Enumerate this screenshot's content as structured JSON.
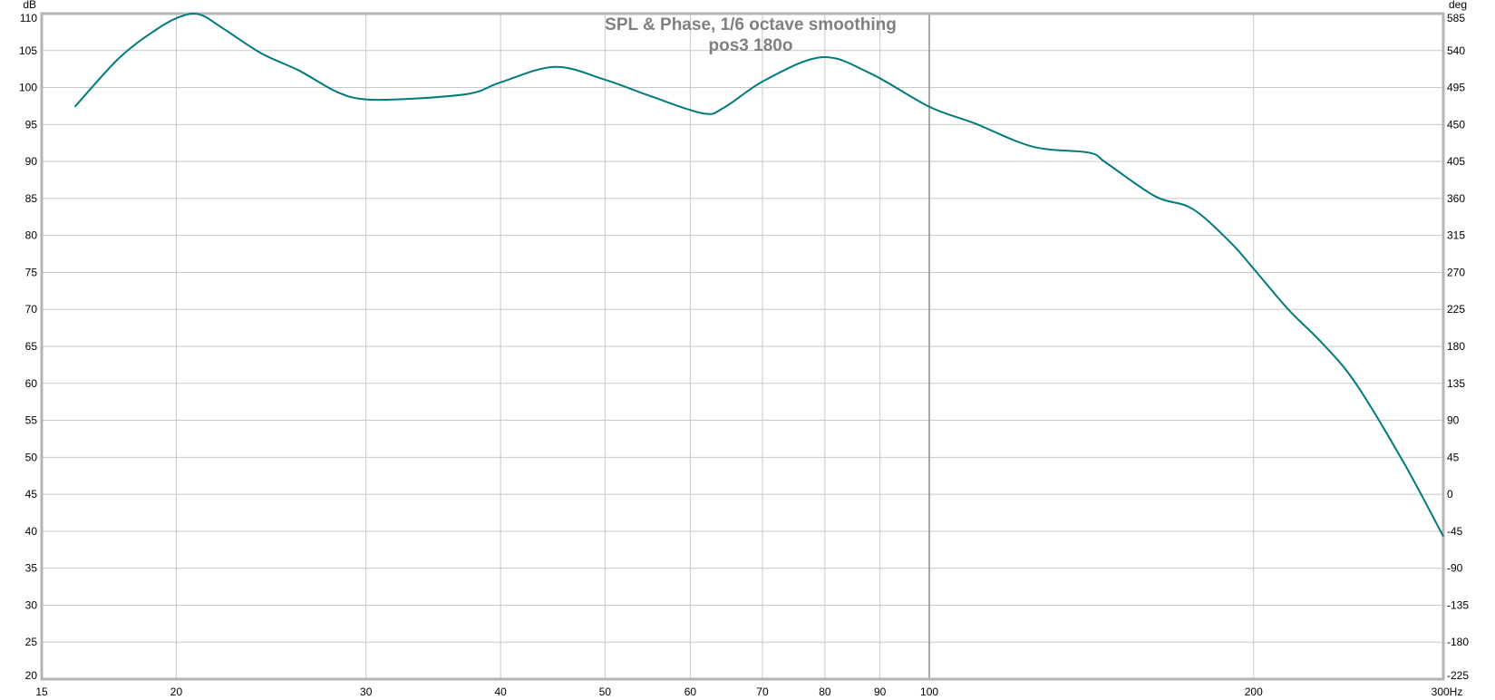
{
  "chart_data": {
    "type": "line",
    "title": "SPL & Phase, 1/6 octave smoothing",
    "subtitle": "pos3 180o",
    "xlabel": "Hz",
    "ylabel": "dB",
    "y2label": "deg",
    "x_scale": "log",
    "xlim": [
      15,
      300
    ],
    "ylim": [
      20,
      110
    ],
    "y2lim": [
      -225,
      585
    ],
    "grid": true,
    "x_ticks": [
      15,
      20,
      30,
      40,
      50,
      60,
      70,
      80,
      90,
      100,
      200,
      300
    ],
    "x_tick_labels": [
      "15",
      "20",
      "30",
      "40",
      "50",
      "60",
      "70",
      "80",
      "90",
      "100",
      "200",
      "300Hz"
    ],
    "y_ticks": [
      110,
      105,
      100,
      95,
      90,
      85,
      80,
      75,
      70,
      65,
      60,
      55,
      50,
      45,
      40,
      35,
      30,
      25,
      20
    ],
    "y2_ticks": [
      585,
      540,
      495,
      450,
      405,
      360,
      315,
      270,
      225,
      180,
      135,
      90,
      45,
      0,
      -45,
      -90,
      -135,
      -180,
      -225
    ],
    "marker_x": 100,
    "colors": {
      "series": "#007a7a",
      "grid": "#c8c8c8",
      "frame": "#b4b4b4",
      "marker": "#8c8c8c"
    },
    "series": [
      {
        "x": [
          16.1,
          17.7,
          19.1,
          20.1,
          21.0,
          22.1,
          24,
          26,
          28.2,
          30,
          33.2,
          37.5,
          40,
          44.9,
          49.9,
          55.2,
          61.7,
          64.5,
          70.4,
          79.5,
          88.2,
          100,
          110,
          124.8,
          140.6,
          146,
          162,
          175.5,
          190.5,
          200,
          215.7,
          231,
          248.5,
          275.6,
          300
        ],
        "y": [
          97.4,
          104,
          107.7,
          109.5,
          109.9,
          108,
          104.6,
          102.3,
          99.4,
          98.4,
          98.5,
          99.2,
          100.7,
          102.8,
          101.1,
          98.8,
          96.5,
          97.3,
          101,
          104.1,
          101.9,
          97.4,
          95.2,
          92,
          91.2,
          89.8,
          85.3,
          83.6,
          79,
          75.5,
          69.9,
          65.6,
          60.1,
          49.3,
          39.3
        ]
      }
    ]
  }
}
